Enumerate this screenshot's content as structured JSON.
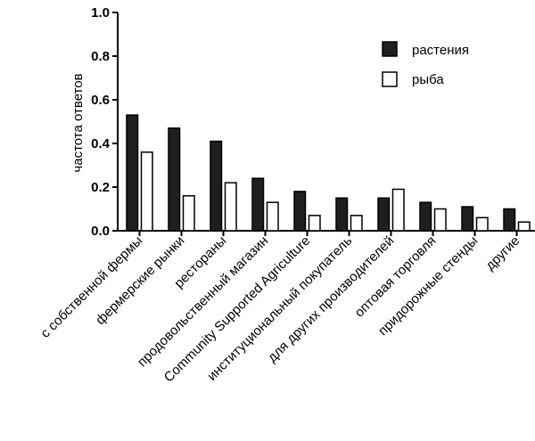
{
  "chart_data": {
    "type": "bar",
    "ylabel": "частота ответов",
    "ylim": [
      0,
      1.0
    ],
    "yticks": [
      "0.0",
      "0.2",
      "0.4",
      "0.6",
      "0.8",
      "1.0"
    ],
    "legend_position": "top-right",
    "grid": false,
    "categories": [
      "с собственной фермы",
      "фермерские рынки",
      "рестораны",
      "продовольственный магазин",
      "Community Supported Agriculture",
      "институциональный покупатель",
      "для других производителей",
      "оптовая торговля",
      "придорожные стенды",
      "другие"
    ],
    "series": [
      {
        "name": "растения",
        "color": "#1f1f1f",
        "values": [
          0.53,
          0.47,
          0.41,
          0.24,
          0.18,
          0.15,
          0.15,
          0.13,
          0.11,
          0.1
        ]
      },
      {
        "name": "рыба",
        "color": "#ffffff",
        "values": [
          0.36,
          0.16,
          0.22,
          0.13,
          0.07,
          0.07,
          0.19,
          0.1,
          0.06,
          0.04
        ]
      }
    ]
  }
}
